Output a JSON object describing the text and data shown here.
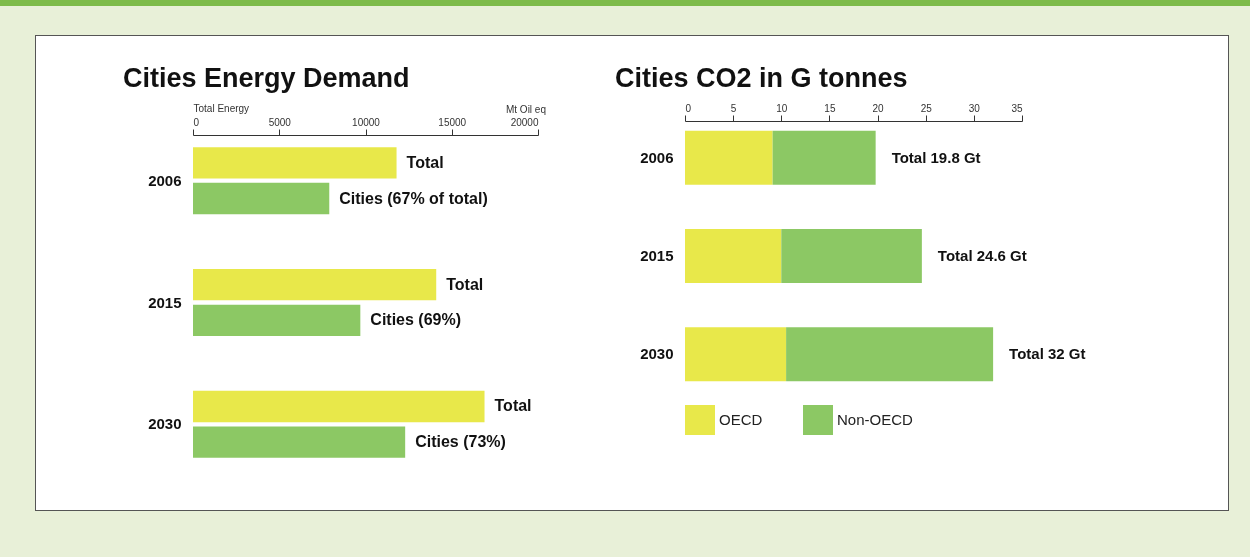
{
  "chart_data": [
    {
      "type": "bar",
      "title": "Cities Energy Demand",
      "xlabel": "Total Energy",
      "annotations": [
        "Mt Oil eq",
        {
          "text": "Cities (67% of total)",
          "x": 7900,
          "y": "2006"
        },
        {
          "text": "Cities (69%)",
          "x": 9700,
          "y": "2015"
        },
        {
          "text": "Cities (73%)",
          "x": 12300,
          "y": "2030"
        }
      ],
      "orientation": "horizontal",
      "categories": [
        "2006",
        "2015",
        "2030"
      ],
      "xlim": [
        0,
        20000
      ],
      "xticks": [
        0,
        5000,
        10000,
        15000,
        20000
      ],
      "series": [
        {
          "color": "#e8e84a",
          "values": [
            11800,
            14100,
            16900
          ],
          "value_labels": [
            "Total",
            "Total",
            "Total"
          ]
        },
        {
          "color": "#8cc864",
          "values": [
            7900,
            9700,
            12300
          ]
        }
      ]
    },
    {
      "type": "bar",
      "title": "Cities CO2 in G tonnes",
      "orientation": "horizontal",
      "stacked": true,
      "legend": "bottom",
      "categories": [
        "2006",
        "2015",
        "2030"
      ],
      "xlim": [
        0,
        35
      ],
      "xticks": [
        0,
        5,
        10,
        15,
        20,
        25,
        30,
        35
      ],
      "totals": [
        "Total 19.8 Gt",
        "Total 24.6 Gt",
        "Total 32 Gt"
      ],
      "series": [
        {
          "name": "OECD",
          "color": "#e8e84a",
          "values": [
            9.1,
            10.0,
            10.5
          ]
        },
        {
          "name": "Non-OECD",
          "color": "#8cc864",
          "values": [
            10.7,
            14.6,
            21.5
          ]
        }
      ]
    }
  ]
}
